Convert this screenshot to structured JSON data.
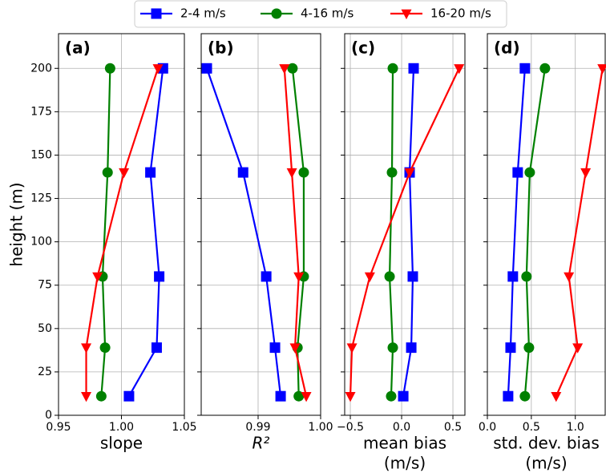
{
  "chart_data": [
    {
      "type": "line",
      "panel_label": "(a)",
      "x_label_lines": [
        "slope"
      ],
      "y_label": "height (m)",
      "y": [
        11,
        39,
        80,
        140,
        200
      ],
      "ylim": [
        0,
        220
      ],
      "yticks": [
        0,
        25,
        50,
        75,
        100,
        125,
        150,
        175,
        200
      ],
      "xlim": [
        0.95,
        1.05
      ],
      "xticks": [
        0.95,
        {
          "value": 1.0,
          "label": "1.00"
        },
        1.05
      ],
      "grid": true,
      "series": [
        {
          "name": "2-4 m/s",
          "color": "#0000ff",
          "marker": "square",
          "values": [
            1.006,
            1.028,
            1.03,
            1.023,
            1.033
          ]
        },
        {
          "name": "4-16 m/s",
          "color": "#008000",
          "marker": "circle",
          "values": [
            0.984,
            0.987,
            0.985,
            0.989,
            0.991
          ]
        },
        {
          "name": "16-20 m/s",
          "color": "#ff0000",
          "marker": "triangle-down",
          "values": [
            0.972,
            0.972,
            0.981,
            1.002,
            1.029
          ]
        }
      ]
    },
    {
      "type": "line",
      "panel_label": "(b)",
      "x_label_lines": [
        "R²"
      ],
      "y": [
        11,
        39,
        80,
        140,
        200
      ],
      "ylim": [
        0,
        220
      ],
      "yticks": [
        0,
        25,
        50,
        75,
        100,
        125,
        150,
        175,
        200
      ],
      "xlim": [
        0.9809,
        1.0
      ],
      "xticks": [
        0.99,
        {
          "value": 1.0,
          "label": "1.00"
        }
      ],
      "grid": true,
      "series": [
        {
          "name": "2-4 m/s",
          "color": "#0000ff",
          "marker": "square",
          "values": [
            0.9936,
            0.9927,
            0.9913,
            0.9876,
            0.9818
          ]
        },
        {
          "name": "4-16 m/s",
          "color": "#008000",
          "marker": "circle",
          "values": [
            0.9965,
            0.9963,
            0.9973,
            0.9973,
            0.9955
          ]
        },
        {
          "name": "16-20 m/s",
          "color": "#ff0000",
          "marker": "triangle-down",
          "values": [
            0.9977,
            0.9959,
            0.9965,
            0.9954,
            0.9942
          ]
        }
      ]
    },
    {
      "type": "line",
      "panel_label": "(c)",
      "x_label_lines": [
        "mean bias",
        "(m/s)"
      ],
      "y": [
        11,
        39,
        80,
        140,
        200
      ],
      "ylim": [
        0,
        220
      ],
      "yticks": [
        0,
        25,
        50,
        75,
        100,
        125,
        150,
        175,
        200
      ],
      "xlim": [
        -0.555,
        0.617
      ],
      "xticks": [
        {
          "value": -0.5,
          "label": "−0.5"
        },
        {
          "value": 0,
          "label": "0.0"
        },
        0.5
      ],
      "grid": true,
      "series": [
        {
          "name": "2-4 m/s",
          "color": "#0000ff",
          "marker": "square",
          "values": [
            0.016,
            0.094,
            0.109,
            0.078,
            0.117
          ]
        },
        {
          "name": "4-16 m/s",
          "color": "#008000",
          "marker": "circle",
          "values": [
            -0.102,
            -0.086,
            -0.117,
            -0.094,
            -0.086
          ]
        },
        {
          "name": "16-20 m/s",
          "color": "#ff0000",
          "marker": "triangle-down",
          "values": [
            -0.5,
            -0.484,
            -0.31,
            0.078,
            0.56
          ]
        }
      ]
    },
    {
      "type": "line",
      "panel_label": "(d)",
      "x_label_lines": [
        "std. dev. bias",
        "(m/s)"
      ],
      "y": [
        11,
        39,
        80,
        140,
        200
      ],
      "ylim": [
        0,
        220
      ],
      "yticks": [
        0,
        25,
        50,
        75,
        100,
        125,
        150,
        175,
        200
      ],
      "xlim": [
        0,
        1.34
      ],
      "xticks": [
        {
          "value": 0,
          "label": "0.0"
        },
        0.5,
        {
          "value": 1.0,
          "label": "1.0"
        }
      ],
      "grid": true,
      "series": [
        {
          "name": "2-4 m/s",
          "color": "#0000ff",
          "marker": "square",
          "values": [
            0.236,
            0.264,
            0.29,
            0.345,
            0.427
          ]
        },
        {
          "name": "4-16 m/s",
          "color": "#008000",
          "marker": "circle",
          "values": [
            0.427,
            0.473,
            0.445,
            0.482,
            0.655
          ]
        },
        {
          "name": "16-20 m/s",
          "color": "#ff0000",
          "marker": "triangle-down",
          "values": [
            0.782,
            1.027,
            0.927,
            1.118,
            1.31
          ]
        }
      ]
    }
  ]
}
